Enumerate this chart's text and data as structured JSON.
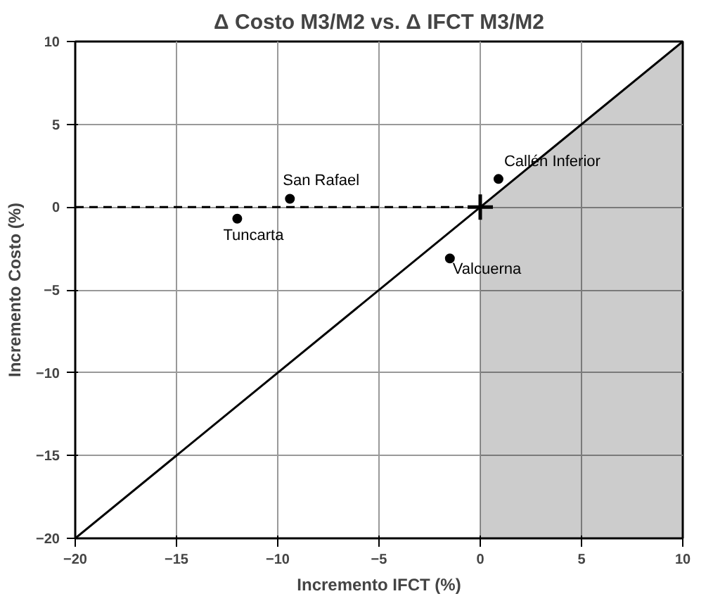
{
  "chart_data": {
    "type": "scatter",
    "title": "Δ Costo M3/M2 vs. Δ IFCT M3/M2",
    "xlabel": "Incremento IFCT (%)",
    "ylabel": "Incremento Costo (%)",
    "xlim": [
      -20,
      10
    ],
    "ylim": [
      -20,
      10
    ],
    "xticks": [
      -20,
      -15,
      -10,
      -5,
      0,
      5,
      10
    ],
    "yticks": [
      -20,
      -15,
      -10,
      -5,
      0,
      5,
      10
    ],
    "grid": true,
    "series": [
      {
        "type": "line",
        "color": "#000000",
        "x": [
          -20,
          0,
          10
        ],
        "values": [
          -20,
          0,
          10
        ],
        "lower": [
          null,
          -20,
          -20
        ],
        "upper": [
          null,
          0,
          10
        ],
        "line_style": "solid"
      },
      {
        "type": "line",
        "color": "#000000",
        "x": [
          -20,
          0
        ],
        "values": [
          0,
          0
        ],
        "line_style": "dashed"
      },
      {
        "color": "#000000",
        "marker": "circle",
        "x": [
          0.9,
          -9.4,
          -12.0,
          -1.5
        ],
        "values": [
          1.7,
          0.5,
          -0.7,
          -3.1
        ]
      },
      {
        "type": "scatter",
        "color": "#000000",
        "marker": "cross",
        "x": [
          0
        ],
        "values": [
          0
        ]
      }
    ],
    "annotations": [
      {
        "text": "Callén Inferior",
        "x": 0.9,
        "y": 1.7
      },
      {
        "text": "San Rafael",
        "x": -9.4,
        "y": 0.5
      },
      {
        "text": "Tuncarta",
        "x": -12.0,
        "y": -0.7
      },
      {
        "text": "Valcuerna",
        "x": -1.5,
        "y": -3.1
      }
    ]
  }
}
